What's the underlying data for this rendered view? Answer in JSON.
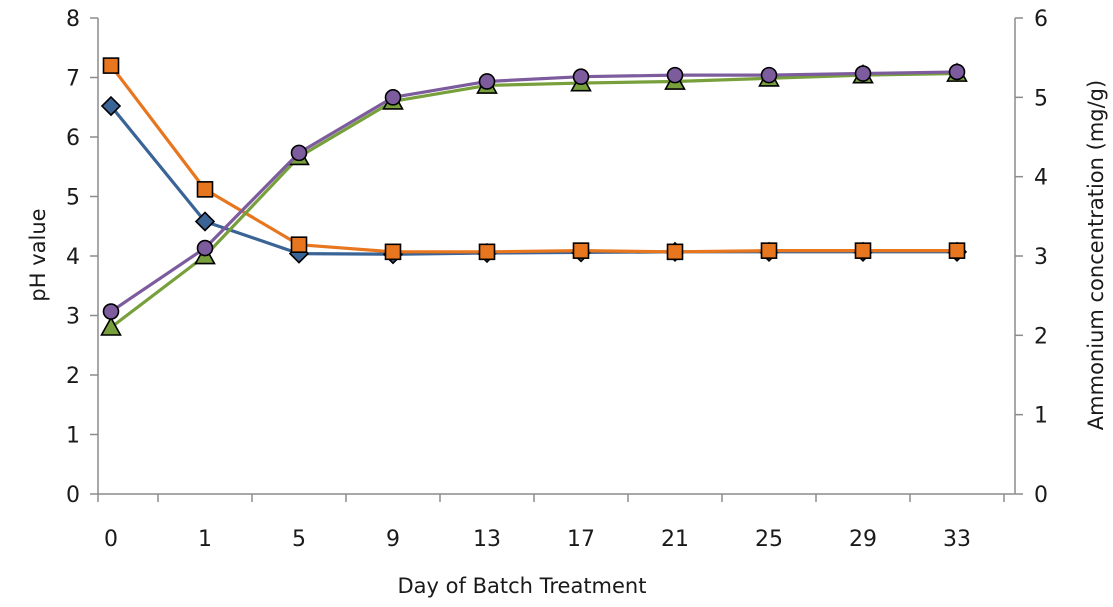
{
  "chart_data": {
    "type": "line",
    "categories": [
      "0",
      "1",
      "5",
      "9",
      "13",
      "17",
      "21",
      "25",
      "29",
      "33"
    ],
    "xlabel": "Day of Batch Treatment",
    "ylabel_left": "pH value",
    "ylabel_right": "Ammonium concentration (mg/g)",
    "ylim_left": [
      0,
      8
    ],
    "ylim_right": [
      0,
      6
    ],
    "yticks_left": [
      "0",
      "1",
      "2",
      "3",
      "4",
      "5",
      "6",
      "7",
      "8"
    ],
    "yticks_right": [
      "0",
      "1",
      "2",
      "3",
      "4",
      "5",
      "6"
    ],
    "grid": false,
    "legend": "none",
    "series": [
      {
        "axis": "left",
        "marker": "diamond",
        "color": "#3b6496",
        "values": [
          6.52,
          4.58,
          4.04,
          4.03,
          4.05,
          4.06,
          4.07,
          4.07,
          4.07,
          4.07
        ]
      },
      {
        "axis": "left",
        "marker": "square",
        "color": "#e8761e",
        "values": [
          7.2,
          5.12,
          4.19,
          4.07,
          4.07,
          4.09,
          4.07,
          4.09,
          4.09,
          4.09
        ]
      },
      {
        "axis": "right",
        "marker": "triangle",
        "color": "#77a03c",
        "values": [
          2.1,
          3.0,
          4.25,
          4.95,
          5.15,
          5.18,
          5.2,
          5.24,
          5.28,
          5.3
        ]
      },
      {
        "axis": "right",
        "marker": "circle",
        "color": "#7d5c9e",
        "values": [
          2.3,
          3.1,
          4.3,
          5.0,
          5.2,
          5.26,
          5.28,
          5.28,
          5.3,
          5.32
        ]
      }
    ]
  }
}
